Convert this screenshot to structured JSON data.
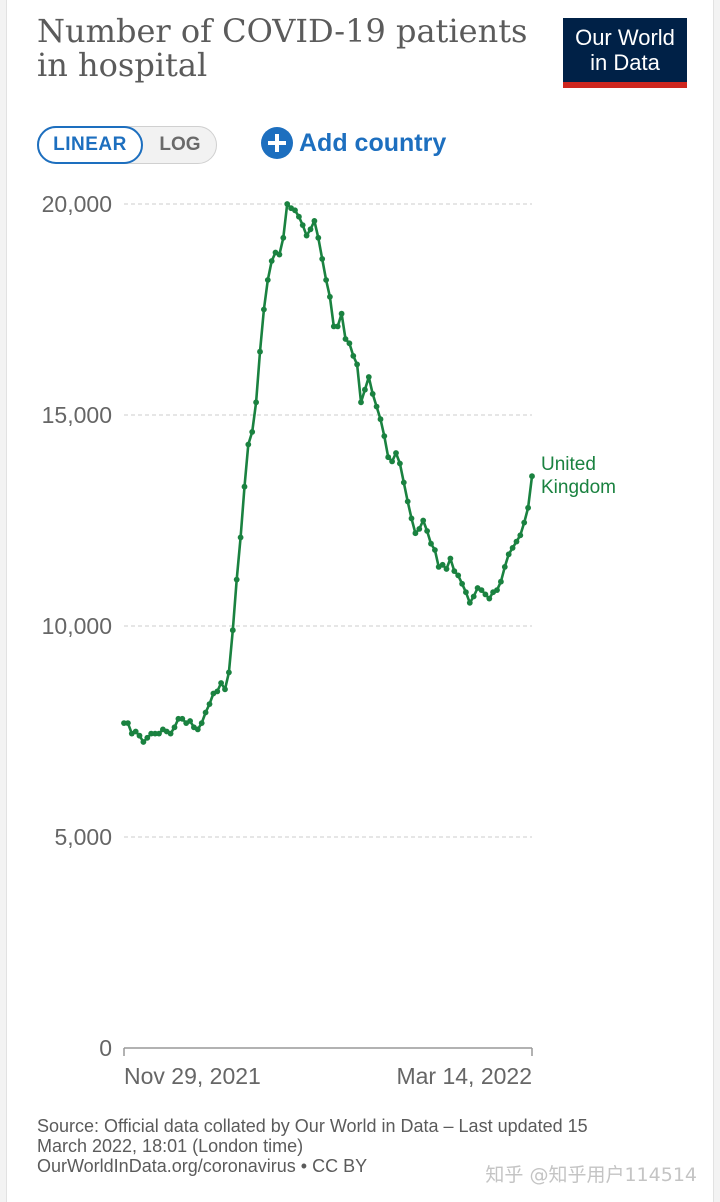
{
  "title": "Number of COVID-19 patients in hospital",
  "logo": {
    "line1": "Our World",
    "line2": "in Data"
  },
  "controls": {
    "linear_label": "LINEAR",
    "log_label": "LOG",
    "add_country_label": "Add country"
  },
  "colors": {
    "series": "#1a8240",
    "accent": "#1d6fbf",
    "logo_bg": "#002147",
    "logo_bar": "#ce261e"
  },
  "chart_data": {
    "type": "line",
    "title": "Number of COVID-19 patients in hospital",
    "xlabel": "",
    "ylabel": "",
    "ylim": [
      0,
      20000
    ],
    "y_ticks": [
      0,
      5000,
      10000,
      15000,
      20000
    ],
    "y_tick_labels": [
      "0",
      "5,000",
      "10,000",
      "15,000",
      "20,000"
    ],
    "x_tick_labels": [
      "Nov 29, 2021",
      "Mar 14, 2022"
    ],
    "grid": "horizontal dashed",
    "series": [
      {
        "name": "United Kingdom",
        "start_date": "2021-11-29",
        "values": [
          7700,
          7700,
          7450,
          7500,
          7400,
          7250,
          7350,
          7450,
          7450,
          7450,
          7550,
          7500,
          7450,
          7600,
          7800,
          7800,
          7700,
          7750,
          7600,
          7550,
          7700,
          7950,
          8150,
          8400,
          8450,
          8650,
          8500,
          8900,
          9900,
          11100,
          12100,
          13300,
          14300,
          14600,
          15300,
          16500,
          17500,
          18200,
          18650,
          18850,
          18800,
          19200,
          20000,
          19900,
          19850,
          19700,
          19500,
          19250,
          19400,
          19600,
          19200,
          18700,
          18200,
          17800,
          17100,
          17100,
          17400,
          16800,
          16700,
          16400,
          16200,
          15300,
          15600,
          15900,
          15500,
          15200,
          14900,
          14500,
          14000,
          13900,
          14100,
          13850,
          13400,
          12950,
          12550,
          12200,
          12300,
          12500,
          12250,
          11950,
          11800,
          11400,
          11450,
          11350,
          11600,
          11300,
          11200,
          11000,
          10800,
          10550,
          10700,
          10900,
          10850,
          10750,
          10650,
          10800,
          10850,
          11050,
          11400,
          11700,
          11850,
          12000,
          12150,
          12450,
          12800,
          13550
        ]
      }
    ]
  },
  "footer": {
    "line1": "Source: Official data collated by Our World in Data – Last updated 15",
    "line2": "March 2022, 18:01 (London time)",
    "line3": "OurWorldInData.org/coronavirus • CC BY"
  },
  "watermark": "知乎 @知乎用户114514"
}
